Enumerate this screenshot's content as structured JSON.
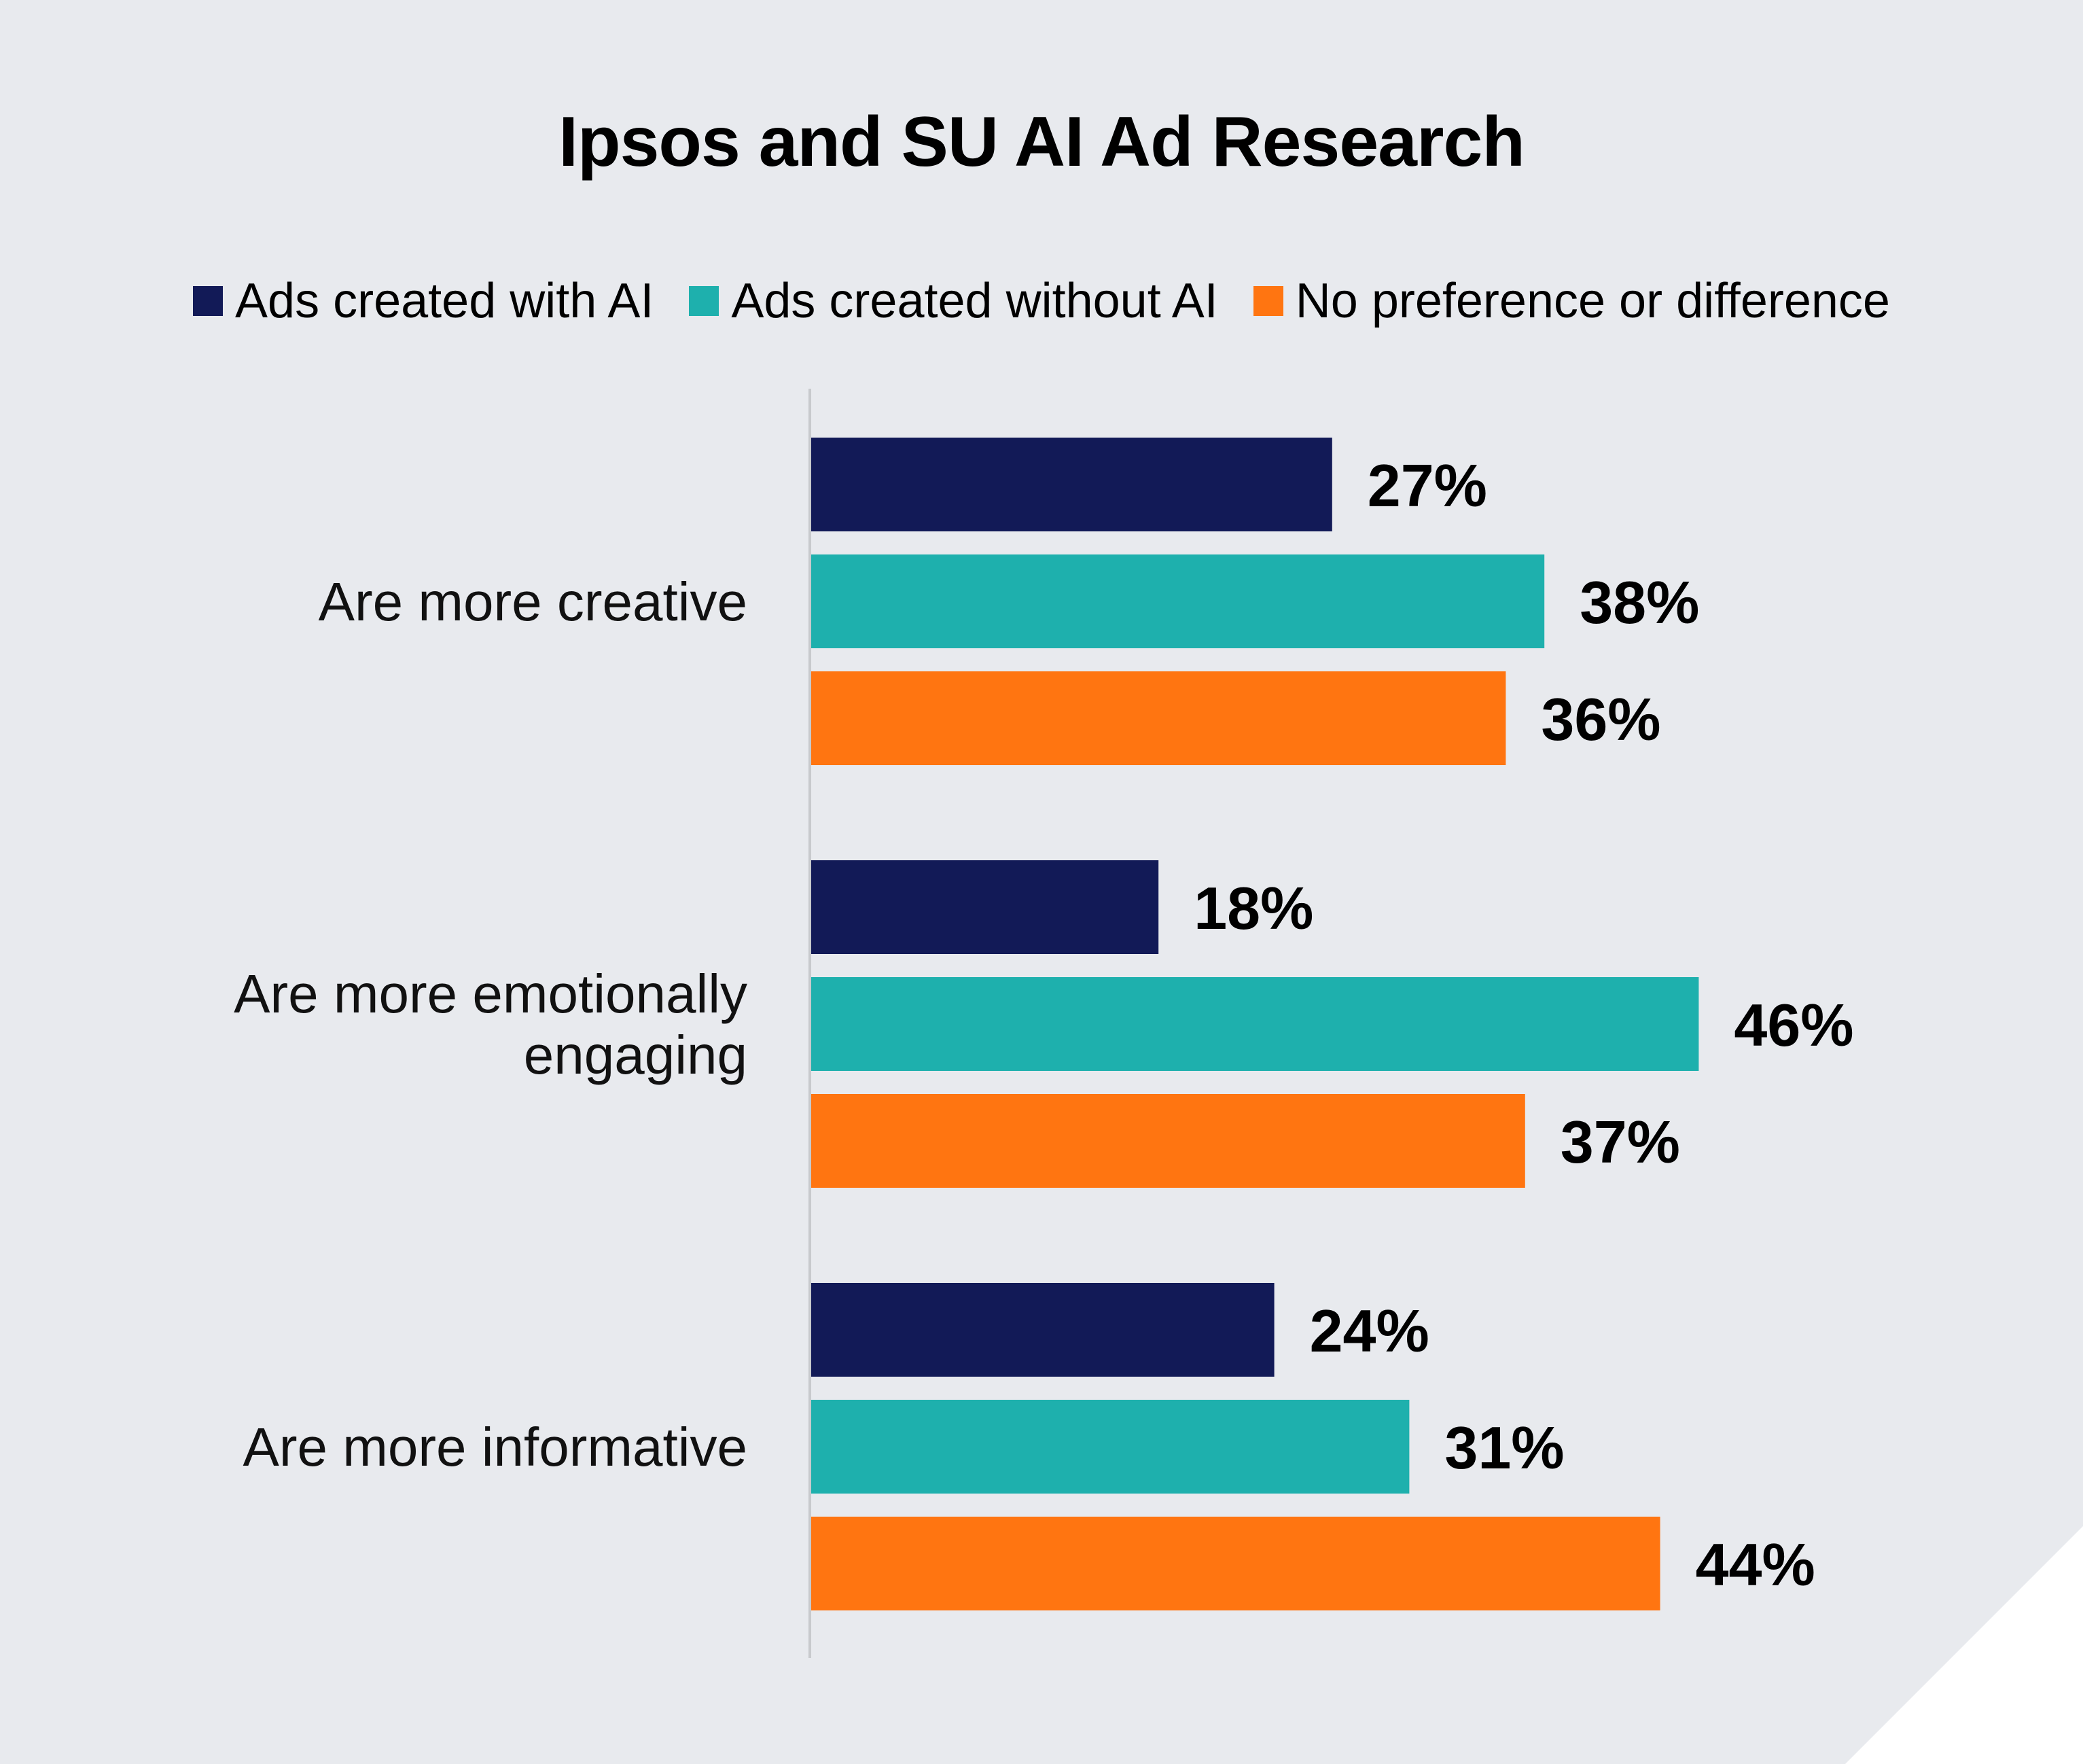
{
  "colors": {
    "background": "#e8eaee",
    "axis": "#c8cacd"
  },
  "chart_data": {
    "type": "bar",
    "orientation": "horizontal",
    "title": "Ipsos and SU AI Ad Research",
    "xlabel": "",
    "ylabel": "",
    "xlim": [
      0,
      50
    ],
    "grid": false,
    "legend_position": "top",
    "categories": [
      "Are more creative",
      "Are more emotionally engaging",
      "Are more informative"
    ],
    "category_label_lines": [
      [
        "Are more creative"
      ],
      [
        "Are more emotionally",
        "engaging"
      ],
      [
        "Are more informative"
      ]
    ],
    "series": [
      {
        "name": "Ads created with AI",
        "color": "#121a57",
        "values": [
          27,
          18,
          24
        ],
        "labels": [
          "27%",
          "18%",
          "24%"
        ]
      },
      {
        "name": "Ads created without AI",
        "color": "#1eb0ad",
        "values": [
          38,
          46,
          31
        ],
        "labels": [
          "38%",
          "46%",
          "31%"
        ]
      },
      {
        "name": "No preference or difference",
        "color": "#ff7511",
        "values": [
          36,
          37,
          44
        ],
        "labels": [
          "36%",
          "37%",
          "44%"
        ]
      }
    ]
  }
}
